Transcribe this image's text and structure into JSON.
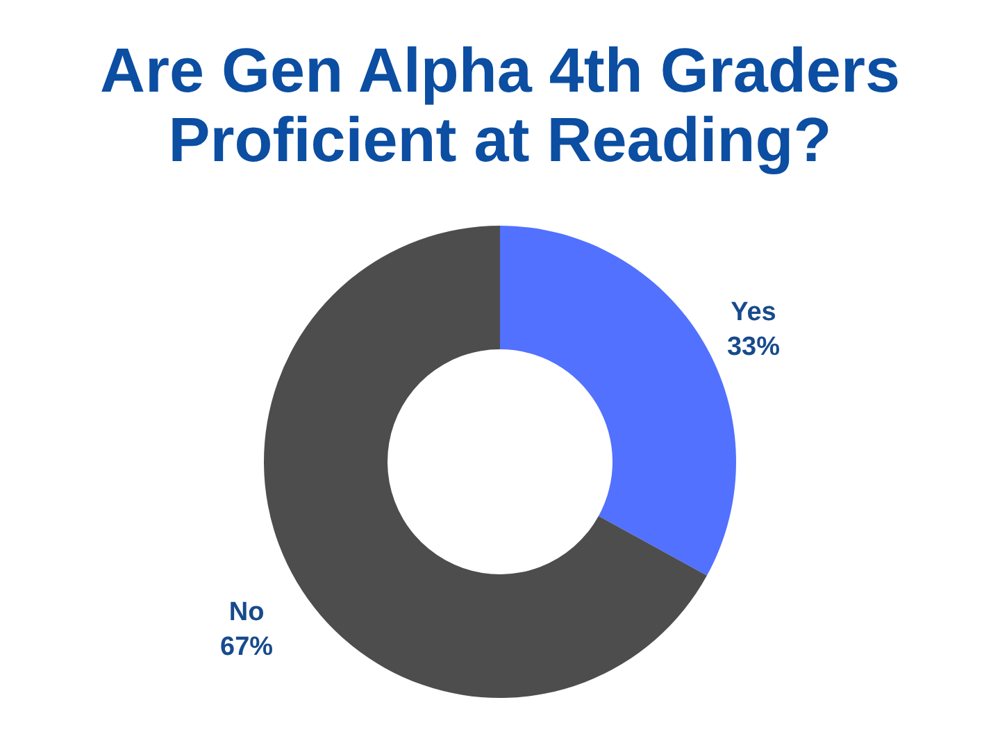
{
  "chart_data": {
    "type": "donut",
    "title": "Are Gen Alpha 4th Graders Proficient at Reading?",
    "categories": [
      "Yes",
      "No"
    ],
    "values": [
      33,
      67
    ],
    "colors": [
      "#5271ff",
      "#4d4d4d"
    ],
    "value_labels": [
      "33%",
      "67%"
    ]
  }
}
